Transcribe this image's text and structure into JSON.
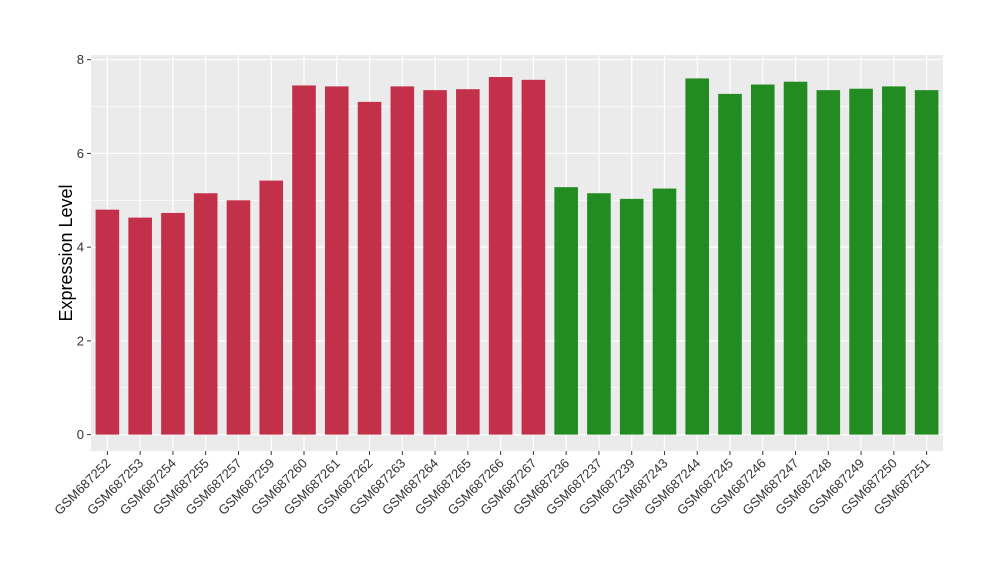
{
  "chart_data": {
    "type": "bar",
    "title": "",
    "xlabel": "",
    "ylabel": "Expression Level",
    "ylim": [
      -0.35,
      8.1
    ],
    "yticks": [
      0,
      2,
      4,
      6,
      8
    ],
    "grid": true,
    "legend": "none",
    "colors": {
      "group1": "#C3304A",
      "group2": "#228B22",
      "panel": "#EBEBEB",
      "grid": "#FFFFFF"
    },
    "categories": [
      "GSM687252",
      "GSM687253",
      "GSM687254",
      "GSM687255",
      "GSM687257",
      "GSM687259",
      "GSM687260",
      "GSM687261",
      "GSM687262",
      "GSM687263",
      "GSM687264",
      "GSM687265",
      "GSM687266",
      "GSM687267",
      "GSM687236",
      "GSM687237",
      "GSM687239",
      "GSM687243",
      "GSM687244",
      "GSM687245",
      "GSM687246",
      "GSM687247",
      "GSM687248",
      "GSM687249",
      "GSM687250",
      "GSM687251"
    ],
    "values": [
      4.8,
      4.63,
      4.73,
      5.15,
      5.0,
      5.42,
      7.45,
      7.43,
      7.1,
      7.43,
      7.35,
      7.37,
      7.63,
      7.57,
      5.28,
      5.15,
      5.03,
      5.25,
      7.6,
      7.27,
      7.47,
      7.53,
      7.35,
      7.38,
      7.43,
      7.35
    ],
    "groups": [
      1,
      1,
      1,
      1,
      1,
      1,
      1,
      1,
      1,
      1,
      1,
      1,
      1,
      1,
      2,
      2,
      2,
      2,
      2,
      2,
      2,
      2,
      2,
      2,
      2,
      2
    ]
  }
}
